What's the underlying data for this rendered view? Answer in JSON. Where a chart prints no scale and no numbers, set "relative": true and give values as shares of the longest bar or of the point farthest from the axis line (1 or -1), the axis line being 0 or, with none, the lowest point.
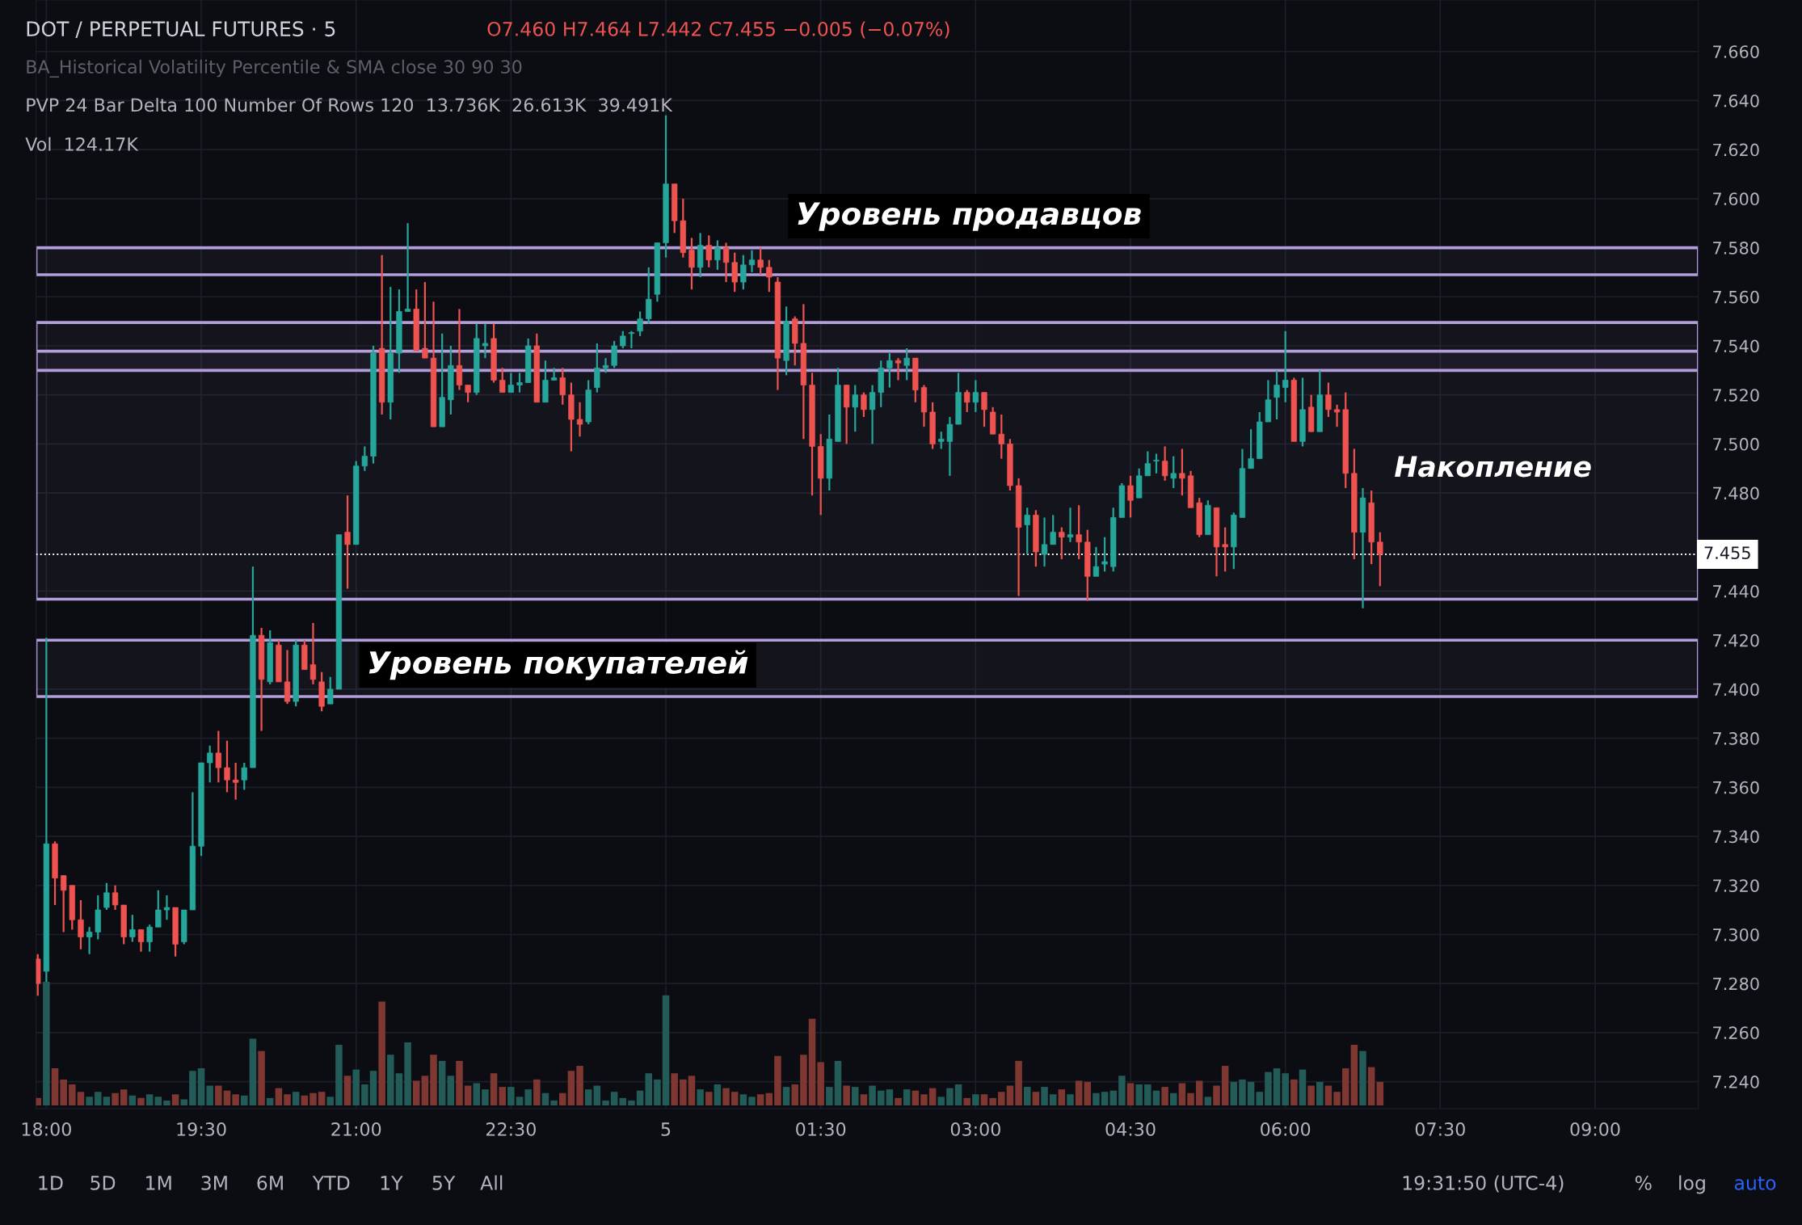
{
  "chart_data": [
    {
      "type": "candlestick",
      "title": "DOT / PERPETUAL FUTURES · 5",
      "x": [
        "--01-04T17:55",
        "--01-04T18:00",
        "--01-04T18:05",
        "--01-04T18:10",
        "--01-04T18:15",
        "--01-04T18:20",
        "--01-04T18:25",
        "--01-04T18:30",
        "--01-04T18:35",
        "--01-04T18:40",
        "--01-04T18:45",
        "--01-04T18:50",
        "--01-04T18:55",
        "--01-04T19:00",
        "--01-04T19:05",
        "--01-04T19:10",
        "--01-04T19:15",
        "--01-04T19:20",
        "--01-04T19:25",
        "--01-04T19:30",
        "--01-04T19:35",
        "--01-04T19:40",
        "--01-04T19:45",
        "--01-04T19:50",
        "--01-04T19:55",
        "--01-04T20:00",
        "--01-04T20:05",
        "--01-04T20:10",
        "--01-04T20:15",
        "--01-04T20:20",
        "--01-04T20:25",
        "--01-04T20:30",
        "--01-04T20:35",
        "--01-04T20:40",
        "--01-04T20:45",
        "--01-04T20:50",
        "--01-04T20:55",
        "--01-04T21:00",
        "--01-04T21:05",
        "--01-04T21:10",
        "--01-04T21:15",
        "--01-04T21:20",
        "--01-04T21:25",
        "--01-04T21:30",
        "--01-04T21:35",
        "--01-04T21:40",
        "--01-04T21:45",
        "--01-04T21:50",
        "--01-04T21:55",
        "--01-04T22:00",
        "--01-04T22:05",
        "--01-04T22:10",
        "--01-04T22:15",
        "--01-04T22:20",
        "--01-04T22:25",
        "--01-04T22:30",
        "--01-04T22:35",
        "--01-04T22:40",
        "--01-04T22:45",
        "--01-04T22:50",
        "--01-04T22:55",
        "--01-04T23:00",
        "--01-04T23:05",
        "--01-04T23:10",
        "--01-04T23:15",
        "--01-04T23:20",
        "--01-04T23:25",
        "--01-04T23:30",
        "--01-04T23:35",
        "--01-04T23:40",
        "--01-04T23:45",
        "--01-04T23:50",
        "--01-04T23:55",
        "--01-05T00:00",
        "--01-05T00:05",
        "--01-05T00:10",
        "--01-05T00:15",
        "--01-05T00:20",
        "--01-05T00:25",
        "--01-05T00:30",
        "--01-05T00:35",
        "--01-05T00:40",
        "--01-05T00:45",
        "--01-05T00:50",
        "--01-05T00:55",
        "--01-05T01:00",
        "--01-05T01:05",
        "--01-05T01:10",
        "--01-05T01:15",
        "--01-05T01:20",
        "--01-05T01:25",
        "--01-05T01:30",
        "--01-05T01:35",
        "--01-05T01:40",
        "--01-05T01:45",
        "--01-05T01:50",
        "--01-05T01:55",
        "--01-05T02:00",
        "--01-05T02:05",
        "--01-05T02:10",
        "--01-05T02:15",
        "--01-05T02:20",
        "--01-05T02:25",
        "--01-05T02:30",
        "--01-05T02:35",
        "--01-05T02:40",
        "--01-05T02:45",
        "--01-05T02:50",
        "--01-05T02:55",
        "--01-05T03:00",
        "--01-05T03:05",
        "--01-05T03:10",
        "--01-05T03:15",
        "--01-05T03:20",
        "--01-05T03:25",
        "--01-05T03:30",
        "--01-05T03:35",
        "--01-05T03:40",
        "--01-05T03:45",
        "--01-05T03:50",
        "--01-05T03:55",
        "--01-05T04:00",
        "--01-05T04:05",
        "--01-05T04:10",
        "--01-05T04:15",
        "--01-05T04:20",
        "--01-05T04:25",
        "--01-05T04:30",
        "--01-05T04:35",
        "--01-05T04:40",
        "--01-05T04:45",
        "--01-05T04:50",
        "--01-05T04:55",
        "--01-05T05:00",
        "--01-05T05:05",
        "--01-05T05:10",
        "--01-05T05:15",
        "--01-05T05:20",
        "--01-05T05:25",
        "--01-05T05:30",
        "--01-05T05:35",
        "--01-05T05:40",
        "--01-05T05:45",
        "--01-05T05:50",
        "--01-05T05:55",
        "--01-05T06:00",
        "--01-05T06:05",
        "--01-05T06:10",
        "--01-05T06:15",
        "--01-05T06:20",
        "--01-05T06:25",
        "--01-05T06:30",
        "--01-05T06:35",
        "--01-05T06:40",
        "--01-05T06:45",
        "--01-05T06:50",
        "--01-05T06:55"
      ],
      "ohlc": [
        [
          7.29,
          7.292,
          7.275,
          7.28
        ],
        [
          7.285,
          7.421,
          7.28,
          7.337
        ],
        [
          7.337,
          7.338,
          7.312,
          7.323
        ],
        [
          7.324,
          7.324,
          7.301,
          7.318
        ],
        [
          7.32,
          7.32,
          7.302,
          7.306
        ],
        [
          7.306,
          7.314,
          7.294,
          7.299
        ],
        [
          7.299,
          7.303,
          7.292,
          7.301
        ],
        [
          7.301,
          7.316,
          7.298,
          7.31
        ],
        [
          7.311,
          7.321,
          7.31,
          7.317
        ],
        [
          7.317,
          7.32,
          7.31,
          7.312
        ],
        [
          7.312,
          7.312,
          7.296,
          7.299
        ],
        [
          7.299,
          7.308,
          7.297,
          7.302
        ],
        [
          7.302,
          7.302,
          7.293,
          7.297
        ],
        [
          7.297,
          7.304,
          7.293,
          7.303
        ],
        [
          7.303,
          7.318,
          7.303,
          7.31
        ],
        [
          7.31,
          7.316,
          7.306,
          7.311
        ],
        [
          7.311,
          7.311,
          7.291,
          7.296
        ],
        [
          7.297,
          7.31,
          7.296,
          7.31
        ],
        [
          7.31,
          7.358,
          7.31,
          7.336
        ],
        [
          7.336,
          7.37,
          7.332,
          7.37
        ],
        [
          7.37,
          7.377,
          7.362,
          7.374
        ],
        [
          7.374,
          7.383,
          7.362,
          7.368
        ],
        [
          7.368,
          7.379,
          7.358,
          7.363
        ],
        [
          7.363,
          7.37,
          7.355,
          7.362
        ],
        [
          7.363,
          7.37,
          7.359,
          7.368
        ],
        [
          7.368,
          7.45,
          7.368,
          7.422
        ],
        [
          7.422,
          7.425,
          7.383,
          7.404
        ],
        [
          7.403,
          7.424,
          7.402,
          7.419
        ],
        [
          7.418,
          7.42,
          7.403,
          7.403
        ],
        [
          7.403,
          7.416,
          7.394,
          7.395
        ],
        [
          7.395,
          7.42,
          7.393,
          7.418
        ],
        [
          7.418,
          7.42,
          7.408,
          7.408
        ],
        [
          7.41,
          7.427,
          7.402,
          7.404
        ],
        [
          7.403,
          7.407,
          7.391,
          7.393
        ],
        [
          7.394,
          7.405,
          7.394,
          7.4
        ],
        [
          7.4,
          7.463,
          7.4,
          7.463
        ],
        [
          7.464,
          7.479,
          7.441,
          7.459
        ],
        [
          7.459,
          7.493,
          7.459,
          7.491
        ],
        [
          7.491,
          7.499,
          7.489,
          7.495
        ],
        [
          7.495,
          7.54,
          7.492,
          7.537
        ],
        [
          7.539,
          7.577,
          7.512,
          7.517
        ],
        [
          7.517,
          7.564,
          7.51,
          7.537
        ],
        [
          7.537,
          7.563,
          7.529,
          7.554
        ],
        [
          7.554,
          7.59,
          7.554,
          7.555
        ],
        [
          7.555,
          7.563,
          7.538,
          7.538
        ],
        [
          7.539,
          7.566,
          7.535,
          7.535
        ],
        [
          7.535,
          7.558,
          7.507,
          7.507
        ],
        [
          7.507,
          7.545,
          7.507,
          7.519
        ],
        [
          7.518,
          7.54,
          7.512,
          7.532
        ],
        [
          7.532,
          7.555,
          7.522,
          7.524
        ],
        [
          7.524,
          7.524,
          7.517,
          7.521
        ],
        [
          7.521,
          7.549,
          7.52,
          7.543
        ],
        [
          7.54,
          7.549,
          7.535,
          7.541
        ],
        [
          7.543,
          7.549,
          7.525,
          7.526
        ],
        [
          7.526,
          7.531,
          7.521,
          7.521
        ],
        [
          7.521,
          7.529,
          7.521,
          7.524
        ],
        [
          7.524,
          7.529,
          7.521,
          7.525
        ],
        [
          7.525,
          7.543,
          7.525,
          7.54
        ],
        [
          7.54,
          7.545,
          7.517,
          7.517
        ],
        [
          7.517,
          7.534,
          7.517,
          7.526
        ],
        [
          7.526,
          7.531,
          7.526,
          7.527
        ],
        [
          7.527,
          7.531,
          7.516,
          7.52
        ],
        [
          7.52,
          7.525,
          7.497,
          7.51
        ],
        [
          7.51,
          7.517,
          7.503,
          7.508
        ],
        [
          7.509,
          7.526,
          7.508,
          7.522
        ],
        [
          7.523,
          7.541,
          7.521,
          7.531
        ],
        [
          7.531,
          7.535,
          7.529,
          7.532
        ],
        [
          7.532,
          7.542,
          7.531,
          7.54
        ],
        [
          7.54,
          7.546,
          7.539,
          7.544
        ],
        [
          7.545,
          7.546,
          7.539,
          7.545
        ],
        [
          7.546,
          7.554,
          7.544,
          7.551
        ],
        [
          7.551,
          7.572,
          7.549,
          7.559
        ],
        [
          7.561,
          7.582,
          7.558,
          7.582
        ],
        [
          7.582,
          7.634,
          7.576,
          7.606
        ],
        [
          7.606,
          7.606,
          7.586,
          7.591
        ],
        [
          7.591,
          7.6,
          7.576,
          7.578
        ],
        [
          7.579,
          7.584,
          7.563,
          7.572
        ],
        [
          7.572,
          7.586,
          7.568,
          7.581
        ],
        [
          7.581,
          7.585,
          7.572,
          7.575
        ],
        [
          7.575,
          7.583,
          7.571,
          7.58
        ],
        [
          7.58,
          7.582,
          7.566,
          7.574
        ],
        [
          7.574,
          7.578,
          7.562,
          7.566
        ],
        [
          7.566,
          7.577,
          7.563,
          7.573
        ],
        [
          7.573,
          7.579,
          7.57,
          7.575
        ],
        [
          7.575,
          7.58,
          7.569,
          7.572
        ],
        [
          7.572,
          7.575,
          7.562,
          7.568
        ],
        [
          7.566,
          7.568,
          7.522,
          7.535
        ],
        [
          7.534,
          7.556,
          7.528,
          7.55
        ],
        [
          7.551,
          7.552,
          7.532,
          7.541
        ],
        [
          7.541,
          7.557,
          7.502,
          7.524
        ],
        [
          7.524,
          7.529,
          7.479,
          7.499
        ],
        [
          7.499,
          7.504,
          7.471,
          7.486
        ],
        [
          7.486,
          7.512,
          7.481,
          7.502
        ],
        [
          7.501,
          7.531,
          7.501,
          7.524
        ],
        [
          7.524,
          7.524,
          7.5,
          7.515
        ],
        [
          7.515,
          7.524,
          7.505,
          7.52
        ],
        [
          7.52,
          7.521,
          7.511,
          7.514
        ],
        [
          7.514,
          7.524,
          7.5,
          7.521
        ],
        [
          7.521,
          7.534,
          7.515,
          7.531
        ],
        [
          7.531,
          7.537,
          7.523,
          7.534
        ],
        [
          7.534,
          7.535,
          7.526,
          7.533
        ],
        [
          7.532,
          7.539,
          7.526,
          7.535
        ],
        [
          7.535,
          7.535,
          7.517,
          7.522
        ],
        [
          7.523,
          7.524,
          7.507,
          7.513
        ],
        [
          7.513,
          7.517,
          7.498,
          7.5
        ],
        [
          7.501,
          7.505,
          7.498,
          7.502
        ],
        [
          7.501,
          7.511,
          7.487,
          7.508
        ],
        [
          7.508,
          7.529,
          7.508,
          7.521
        ],
        [
          7.521,
          7.522,
          7.513,
          7.517
        ],
        [
          7.517,
          7.526,
          7.513,
          7.521
        ],
        [
          7.521,
          7.521,
          7.507,
          7.514
        ],
        [
          7.513,
          7.515,
          7.504,
          7.504
        ],
        [
          7.504,
          7.512,
          7.494,
          7.5
        ],
        [
          7.5,
          7.502,
          7.481,
          7.483
        ],
        [
          7.483,
          7.486,
          7.438,
          7.466
        ],
        [
          7.467,
          7.474,
          7.455,
          7.471
        ],
        [
          7.471,
          7.473,
          7.45,
          7.456
        ],
        [
          7.455,
          7.47,
          7.45,
          7.459
        ],
        [
          7.459,
          7.471,
          7.459,
          7.464
        ],
        [
          7.464,
          7.466,
          7.453,
          7.462
        ],
        [
          7.462,
          7.474,
          7.46,
          7.463
        ],
        [
          7.463,
          7.475,
          7.453,
          7.46
        ],
        [
          7.46,
          7.465,
          7.436,
          7.446
        ],
        [
          7.446,
          7.458,
          7.446,
          7.45
        ],
        [
          7.451,
          7.462,
          7.448,
          7.452
        ],
        [
          7.45,
          7.474,
          7.448,
          7.47
        ],
        [
          7.47,
          7.484,
          7.47,
          7.483
        ],
        [
          7.483,
          7.487,
          7.47,
          7.477
        ],
        [
          7.478,
          7.49,
          7.478,
          7.487
        ],
        [
          7.487,
          7.497,
          7.487,
          7.492
        ],
        [
          7.493,
          7.496,
          7.488,
          7.493
        ],
        [
          7.493,
          7.499,
          7.485,
          7.487
        ],
        [
          7.486,
          7.495,
          7.482,
          7.488
        ],
        [
          7.488,
          7.498,
          7.479,
          7.486
        ],
        [
          7.487,
          7.489,
          7.474,
          7.474
        ],
        [
          7.476,
          7.478,
          7.462,
          7.463
        ],
        [
          7.463,
          7.477,
          7.463,
          7.475
        ],
        [
          7.474,
          7.474,
          7.446,
          7.458
        ],
        [
          7.459,
          7.466,
          7.448,
          7.458
        ],
        [
          7.458,
          7.472,
          7.449,
          7.471
        ],
        [
          7.47,
          7.498,
          7.47,
          7.49
        ],
        [
          7.49,
          7.506,
          7.49,
          7.494
        ],
        [
          7.494,
          7.513,
          7.494,
          7.509
        ],
        [
          7.509,
          7.526,
          7.509,
          7.518
        ],
        [
          7.519,
          7.53,
          7.51,
          7.524
        ],
        [
          7.523,
          7.546,
          7.517,
          7.526
        ],
        [
          7.526,
          7.527,
          7.501,
          7.501
        ],
        [
          7.501,
          7.527,
          7.499,
          7.514
        ],
        [
          7.515,
          7.52,
          7.505,
          7.505
        ],
        [
          7.505,
          7.53,
          7.505,
          7.52
        ],
        [
          7.52,
          7.525,
          7.511,
          7.514
        ],
        [
          7.514,
          7.516,
          7.507,
          7.513
        ],
        [
          7.514,
          7.521,
          7.482,
          7.488
        ],
        [
          7.488,
          7.498,
          7.453,
          7.464
        ],
        [
          7.464,
          7.482,
          7.433,
          7.478
        ],
        [
          7.476,
          7.481,
          7.451,
          7.46
        ],
        [
          7.46,
          7.464,
          7.442,
          7.455
        ]
      ],
      "colors": [
        "#ef5350",
        "#26a69a",
        "#ef5350",
        "#ef5350",
        "#ef5350",
        "#ef5350",
        "#26a69a",
        "#26a69a",
        "#26a69a",
        "#ef5350",
        "#ef5350",
        "#26a69a",
        "#ef5350",
        "#26a69a",
        "#26a69a",
        "#26a69a",
        "#ef5350",
        "#26a69a",
        "#26a69a",
        "#26a69a",
        "#26a69a",
        "#ef5350",
        "#ef5350",
        "#ef5350",
        "#26a69a",
        "#26a69a",
        "#ef5350",
        "#26a69a",
        "#ef5350",
        "#ef5350",
        "#26a69a",
        "#ef5350",
        "#ef5350",
        "#ef5350",
        "#26a69a",
        "#26a69a",
        "#ef5350",
        "#26a69a",
        "#26a69a",
        "#26a69a",
        "#ef5350",
        "#26a69a",
        "#26a69a",
        "#26a69a",
        "#ef5350",
        "#ef5350",
        "#ef5350",
        "#26a69a",
        "#26a69a",
        "#ef5350",
        "#ef5350",
        "#26a69a",
        "#26a69a",
        "#ef5350",
        "#ef5350",
        "#26a69a",
        "#26a69a",
        "#26a69a",
        "#ef5350",
        "#26a69a",
        "#26a69a",
        "#ef5350",
        "#ef5350",
        "#ef5350",
        "#26a69a",
        "#26a69a",
        "#26a69a",
        "#26a69a",
        "#26a69a",
        "#26a69a",
        "#26a69a",
        "#26a69a",
        "#26a69a",
        "#26a69a",
        "#ef5350",
        "#ef5350",
        "#ef5350",
        "#26a69a",
        "#ef5350",
        "#26a69a",
        "#ef5350",
        "#ef5350",
        "#26a69a",
        "#26a69a",
        "#ef5350",
        "#ef5350",
        "#ef5350",
        "#26a69a",
        "#ef5350",
        "#ef5350",
        "#ef5350",
        "#ef5350",
        "#26a69a",
        "#26a69a",
        "#ef5350",
        "#26a69a",
        "#ef5350",
        "#26a69a",
        "#26a69a",
        "#26a69a",
        "#ef5350",
        "#26a69a",
        "#ef5350",
        "#ef5350",
        "#ef5350",
        "#26a69a",
        "#26a69a",
        "#26a69a",
        "#ef5350",
        "#26a69a",
        "#ef5350",
        "#ef5350",
        "#ef5350",
        "#ef5350",
        "#ef5350",
        "#26a69a",
        "#ef5350",
        "#26a69a",
        "#26a69a",
        "#ef5350",
        "#26a69a",
        "#ef5350",
        "#ef5350",
        "#26a69a",
        "#26a69a",
        "#26a69a",
        "#26a69a",
        "#ef5350",
        "#26a69a",
        "#26a69a",
        "#26a69a",
        "#ef5350",
        "#26a69a",
        "#ef5350",
        "#ef5350",
        "#ef5350",
        "#26a69a",
        "#ef5350",
        "#ef5350",
        "#26a69a",
        "#26a69a",
        "#26a69a",
        "#26a69a",
        "#26a69a",
        "#26a69a",
        "#26a69a",
        "#ef5350",
        "#26a69a",
        "#ef5350",
        "#26a69a",
        "#ef5350",
        "#ef5350",
        "#ef5350",
        "#ef5350",
        "#26a69a",
        "#ef5350",
        "#ef5350"
      ],
      "xlim": [
        "--01-04T17:54",
        "--01-05T10:00"
      ],
      "ylim": [
        7.229,
        7.681
      ],
      "xticks": [
        {
          "value": "--01-04T18:00",
          "label": "18:00"
        },
        {
          "value": "--01-04T19:30",
          "label": "19:30"
        },
        {
          "value": "--01-04T21:00",
          "label": "21:00"
        },
        {
          "value": "--01-04T22:30",
          "label": "22:30"
        },
        {
          "value": "--01-05T00:00",
          "label": "5"
        },
        {
          "value": "--01-05T01:30",
          "label": "01:30"
        },
        {
          "value": "--01-05T03:00",
          "label": "03:00"
        },
        {
          "value": "--01-05T04:30",
          "label": "04:30"
        },
        {
          "value": "--01-05T06:00",
          "label": "06:00"
        },
        {
          "value": "--01-05T07:30",
          "label": "07:30"
        },
        {
          "value": "--01-05T09:00",
          "label": "09:00"
        }
      ],
      "yticks": [
        {
          "value": 7.24,
          "label": "7.240"
        },
        {
          "value": 7.26,
          "label": "7.260"
        },
        {
          "value": 7.28,
          "label": "7.280"
        },
        {
          "value": 7.3,
          "label": "7.300"
        },
        {
          "value": 7.32,
          "label": "7.320"
        },
        {
          "value": 7.34,
          "label": "7.340"
        },
        {
          "value": 7.36,
          "label": "7.360"
        },
        {
          "value": 7.38,
          "label": "7.380"
        },
        {
          "value": 7.4,
          "label": "7.400"
        },
        {
          "value": 7.42,
          "label": "7.420"
        },
        {
          "value": 7.44,
          "label": "7.440"
        },
        {
          "value": 7.48,
          "label": "7.480"
        },
        {
          "value": 7.5,
          "label": "7.500"
        },
        {
          "value": 7.52,
          "label": "7.520"
        },
        {
          "value": 7.54,
          "label": "7.540"
        },
        {
          "value": 7.56,
          "label": "7.560"
        },
        {
          "value": 7.58,
          "label": "7.580"
        },
        {
          "value": 7.6,
          "label": "7.600"
        },
        {
          "value": 7.62,
          "label": "7.620"
        },
        {
          "value": 7.64,
          "label": "7.640"
        },
        {
          "value": 7.66,
          "label": "7.660"
        }
      ],
      "grid": true,
      "ref_lines": [
        {
          "axis": "y",
          "value": 7.455,
          "label": "7.455",
          "color": "#ffffff",
          "line_style": "dotted"
        }
      ],
      "bands": [
        {
          "axis": "y",
          "from": 7.53,
          "to": 7.5495,
          "color": "#b39ddb"
        },
        {
          "axis": "y",
          "from": 7.569,
          "to": 7.58,
          "color": "#b39ddb"
        },
        {
          "axis": "y",
          "from": 7.4367,
          "to": 7.5378,
          "color": "#b39ddb"
        },
        {
          "axis": "y",
          "from": 7.397,
          "to": 7.42,
          "color": "#b39ddb"
        }
      ],
      "annotations": [
        "O7.460 H7.464 L7.442 C7.455 −0.005 (−0.07%)",
        "BA_Historical Volatility Percentile & SMA close 30 90 30",
        "PVP 24 Bar Delta 100 Number Of Rows 120  13.736K  26.613K  39.491K",
        "Vol  124.17K",
        "Уровень продавцов",
        "Уровень покупателей",
        "Накопление",
        "1D",
        "5D",
        "1M",
        "3M",
        "6M",
        "YTD",
        "1Y",
        "5Y",
        "All",
        "19:31:50 (UTC-4)",
        "%",
        "log",
        "auto"
      ]
    },
    {
      "type": "bar",
      "relative": true,
      "tick_labels": false,
      "x": [
        "--01-04T17:55",
        "--01-04T18:00",
        "--01-04T18:05",
        "--01-04T18:10",
        "--01-04T18:15",
        "--01-04T18:20",
        "--01-04T18:25",
        "--01-04T18:30",
        "--01-04T18:35",
        "--01-04T18:40",
        "--01-04T18:45",
        "--01-04T18:50",
        "--01-04T18:55",
        "--01-04T19:00",
        "--01-04T19:05",
        "--01-04T19:10",
        "--01-04T19:15",
        "--01-04T19:20",
        "--01-04T19:25",
        "--01-04T19:30",
        "--01-04T19:35",
        "--01-04T19:40",
        "--01-04T19:45",
        "--01-04T19:50",
        "--01-04T19:55",
        "--01-04T20:00",
        "--01-04T20:05",
        "--01-04T20:10",
        "--01-04T20:15",
        "--01-04T20:20",
        "--01-04T20:25",
        "--01-04T20:30",
        "--01-04T20:35",
        "--01-04T20:40",
        "--01-04T20:45",
        "--01-04T20:50",
        "--01-04T20:55",
        "--01-04T21:00",
        "--01-04T21:05",
        "--01-04T21:10",
        "--01-04T21:15",
        "--01-04T21:20",
        "--01-04T21:25",
        "--01-04T21:30",
        "--01-04T21:35",
        "--01-04T21:40",
        "--01-04T21:45",
        "--01-04T21:50",
        "--01-04T21:55",
        "--01-04T22:00",
        "--01-04T22:05",
        "--01-04T22:10",
        "--01-04T22:15",
        "--01-04T22:20",
        "--01-04T22:25",
        "--01-04T22:30",
        "--01-04T22:35",
        "--01-04T22:40",
        "--01-04T22:45",
        "--01-04T22:50",
        "--01-04T22:55",
        "--01-04T23:00",
        "--01-04T23:05",
        "--01-04T23:10",
        "--01-04T23:15",
        "--01-04T23:20",
        "--01-04T23:25",
        "--01-04T23:30",
        "--01-04T23:35",
        "--01-04T23:40",
        "--01-04T23:45",
        "--01-04T23:50",
        "--01-04T23:55",
        "--01-05T00:00",
        "--01-05T00:05",
        "--01-05T00:10",
        "--01-05T00:15",
        "--01-05T00:20",
        "--01-05T00:25",
        "--01-05T00:30",
        "--01-05T00:35",
        "--01-05T00:40",
        "--01-05T00:45",
        "--01-05T00:50",
        "--01-05T00:55",
        "--01-05T01:00",
        "--01-05T01:05",
        "--01-05T01:10",
        "--01-05T01:15",
        "--01-05T01:20",
        "--01-05T01:25",
        "--01-05T01:30",
        "--01-05T01:35",
        "--01-05T01:40",
        "--01-05T01:45",
        "--01-05T01:50",
        "--01-05T01:55",
        "--01-05T02:00",
        "--01-05T02:05",
        "--01-05T02:10",
        "--01-05T02:15",
        "--01-05T02:20",
        "--01-05T02:25",
        "--01-05T02:30",
        "--01-05T02:35",
        "--01-05T02:40",
        "--01-05T02:45",
        "--01-05T02:50",
        "--01-05T02:55",
        "--01-05T03:00",
        "--01-05T03:05",
        "--01-05T03:10",
        "--01-05T03:15",
        "--01-05T03:20",
        "--01-05T03:25",
        "--01-05T03:30",
        "--01-05T03:35",
        "--01-05T03:40",
        "--01-05T03:45",
        "--01-05T03:50",
        "--01-05T03:55",
        "--01-05T04:00",
        "--01-05T04:05",
        "--01-05T04:10",
        "--01-05T04:15",
        "--01-05T04:20",
        "--01-05T04:25",
        "--01-05T04:30",
        "--01-05T04:35",
        "--01-05T04:40",
        "--01-05T04:45",
        "--01-05T04:50",
        "--01-05T04:55",
        "--01-05T05:00",
        "--01-05T05:05",
        "--01-05T05:10",
        "--01-05T05:15",
        "--01-05T05:20",
        "--01-05T05:25",
        "--01-05T05:30",
        "--01-05T05:35",
        "--01-05T05:40",
        "--01-05T05:45",
        "--01-05T05:50",
        "--01-05T05:55",
        "--01-05T06:00",
        "--01-05T06:05",
        "--01-05T06:10",
        "--01-05T06:15",
        "--01-05T06:20",
        "--01-05T06:25",
        "--01-05T06:30",
        "--01-05T06:35",
        "--01-05T06:40",
        "--01-05T06:45",
        "--01-05T06:50",
        "--01-05T06:55"
      ],
      "values": [
        0.06,
        1,
        0.3,
        0.21,
        0.17,
        0.11,
        0.07,
        0.11,
        0.07,
        0.1,
        0.13,
        0.08,
        0.06,
        0.09,
        0.07,
        0.04,
        0.09,
        0.05,
        0.28,
        0.3,
        0.16,
        0.16,
        0.12,
        0.09,
        0.08,
        0.54,
        0.44,
        0.06,
        0.14,
        0.09,
        0.11,
        0.08,
        0.1,
        0.11,
        0.07,
        0.49,
        0.24,
        0.29,
        0.17,
        0.28,
        0.84,
        0.41,
        0.26,
        0.51,
        0.2,
        0.24,
        0.41,
        0.36,
        0.24,
        0.36,
        0.16,
        0.18,
        0.13,
        0.26,
        0.15,
        0.15,
        0.07,
        0.13,
        0.21,
        0.1,
        0.04,
        0.1,
        0.28,
        0.32,
        0.13,
        0.16,
        0.04,
        0.11,
        0.06,
        0.04,
        0.12,
        0.26,
        0.21,
        0.89,
        0.26,
        0.21,
        0.24,
        0.13,
        0.11,
        0.17,
        0.14,
        0.11,
        0.09,
        0.07,
        0.09,
        0.1,
        0.4,
        0.15,
        0.17,
        0.41,
        0.7,
        0.35,
        0.15,
        0.36,
        0.16,
        0.15,
        0.09,
        0.16,
        0.12,
        0.13,
        0.06,
        0.13,
        0.12,
        0.09,
        0.14,
        0.07,
        0.14,
        0.17,
        0.06,
        0.09,
        0.09,
        0.06,
        0.11,
        0.16,
        0.36,
        0.15,
        0.11,
        0.15,
        0.09,
        0.13,
        0.09,
        0.2,
        0.19,
        0.1,
        0.11,
        0.12,
        0.24,
        0.18,
        0.17,
        0.17,
        0.12,
        0.15,
        0.1,
        0.18,
        0.1,
        0.2,
        0.07,
        0.16,
        0.32,
        0.19,
        0.21,
        0.19,
        0.11,
        0.27,
        0.3,
        0.26,
        0.21,
        0.29,
        0.16,
        0.19,
        0.16,
        0.11,
        0.3,
        0.49,
        0.44,
        0.31,
        0.19
      ],
      "colors": [
        "#7e3731",
        "#225b57",
        "#7e3731",
        "#7e3731",
        "#7e3731",
        "#7e3731",
        "#225b57",
        "#225b57",
        "#225b57",
        "#7e3731",
        "#7e3731",
        "#225b57",
        "#7e3731",
        "#225b57",
        "#225b57",
        "#225b57",
        "#7e3731",
        "#225b57",
        "#225b57",
        "#225b57",
        "#225b57",
        "#7e3731",
        "#7e3731",
        "#7e3731",
        "#225b57",
        "#225b57",
        "#7e3731",
        "#225b57",
        "#7e3731",
        "#7e3731",
        "#225b57",
        "#7e3731",
        "#7e3731",
        "#7e3731",
        "#225b57",
        "#225b57",
        "#7e3731",
        "#225b57",
        "#225b57",
        "#225b57",
        "#7e3731",
        "#225b57",
        "#225b57",
        "#225b57",
        "#7e3731",
        "#7e3731",
        "#7e3731",
        "#225b57",
        "#225b57",
        "#7e3731",
        "#7e3731",
        "#225b57",
        "#225b57",
        "#7e3731",
        "#7e3731",
        "#225b57",
        "#225b57",
        "#225b57",
        "#7e3731",
        "#225b57",
        "#225b57",
        "#7e3731",
        "#7e3731",
        "#7e3731",
        "#225b57",
        "#225b57",
        "#225b57",
        "#225b57",
        "#225b57",
        "#225b57",
        "#225b57",
        "#225b57",
        "#225b57",
        "#225b57",
        "#7e3731",
        "#7e3731",
        "#7e3731",
        "#225b57",
        "#7e3731",
        "#225b57",
        "#7e3731",
        "#7e3731",
        "#225b57",
        "#225b57",
        "#7e3731",
        "#7e3731",
        "#7e3731",
        "#225b57",
        "#7e3731",
        "#7e3731",
        "#7e3731",
        "#7e3731",
        "#225b57",
        "#225b57",
        "#7e3731",
        "#225b57",
        "#7e3731",
        "#225b57",
        "#225b57",
        "#225b57",
        "#7e3731",
        "#225b57",
        "#7e3731",
        "#7e3731",
        "#7e3731",
        "#225b57",
        "#225b57",
        "#225b57",
        "#7e3731",
        "#225b57",
        "#7e3731",
        "#7e3731",
        "#7e3731",
        "#7e3731",
        "#7e3731",
        "#225b57",
        "#7e3731",
        "#225b57",
        "#225b57",
        "#7e3731",
        "#225b57",
        "#7e3731",
        "#7e3731",
        "#225b57",
        "#225b57",
        "#225b57",
        "#225b57",
        "#7e3731",
        "#225b57",
        "#225b57",
        "#225b57",
        "#7e3731",
        "#225b57",
        "#7e3731",
        "#7e3731",
        "#7e3731",
        "#225b57",
        "#7e3731",
        "#7e3731",
        "#225b57",
        "#225b57",
        "#225b57",
        "#225b57",
        "#225b57",
        "#225b57",
        "#225b57",
        "#7e3731",
        "#225b57",
        "#7e3731",
        "#225b57",
        "#7e3731",
        "#7e3731",
        "#7e3731",
        "#7e3731",
        "#225b57",
        "#7e3731",
        "#7e3731"
      ],
      "xlim": [
        "--01-04T17:54",
        "--01-05T10:00"
      ]
    }
  ]
}
